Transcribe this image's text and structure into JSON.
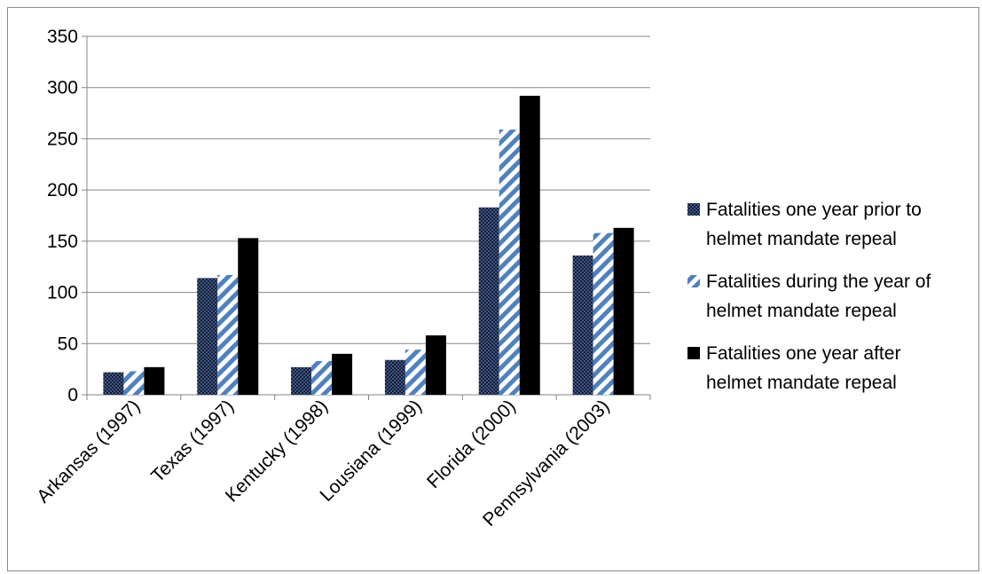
{
  "chart_data": {
    "type": "bar",
    "categories": [
      "Arkansas (1997)",
      "Texas (1997)",
      "Kentucky (1998)",
      "Lousiana (1999)",
      "Florida (2000)",
      "Pennsylvania (2003)"
    ],
    "series": [
      {
        "name": "Fatalities one year prior to helmet mandate repeal",
        "values": [
          22,
          114,
          27,
          34,
          183,
          136
        ],
        "color": "#1f3864",
        "pattern": "dark-checker"
      },
      {
        "name": "Fatalities during the year of helmet mandate repeal",
        "values": [
          23,
          117,
          33,
          44,
          259,
          158
        ],
        "color": "#4f81bd",
        "pattern": "diagonal-stripes"
      },
      {
        "name": "Fatalities one year after helmet mandate repeal",
        "values": [
          27,
          153,
          40,
          58,
          292,
          163
        ],
        "color": "#000000",
        "pattern": "solid"
      }
    ],
    "yticks": [
      "0",
      "50",
      "100",
      "150",
      "200",
      "250",
      "300",
      "350"
    ],
    "ylim": [
      0,
      350
    ],
    "title": "",
    "xlabel": "",
    "ylabel": "",
    "grid": true,
    "legend_position": "right"
  },
  "legend": {
    "items": [
      {
        "line1": "Fatalities one year prior to",
        "line2": "helmet mandate repeal"
      },
      {
        "line1": "Fatalities during the year of",
        "line2": "helmet mandate repeal"
      },
      {
        "line1": "Fatalities one year after",
        "line2": "helmet mandate repeal"
      }
    ]
  }
}
